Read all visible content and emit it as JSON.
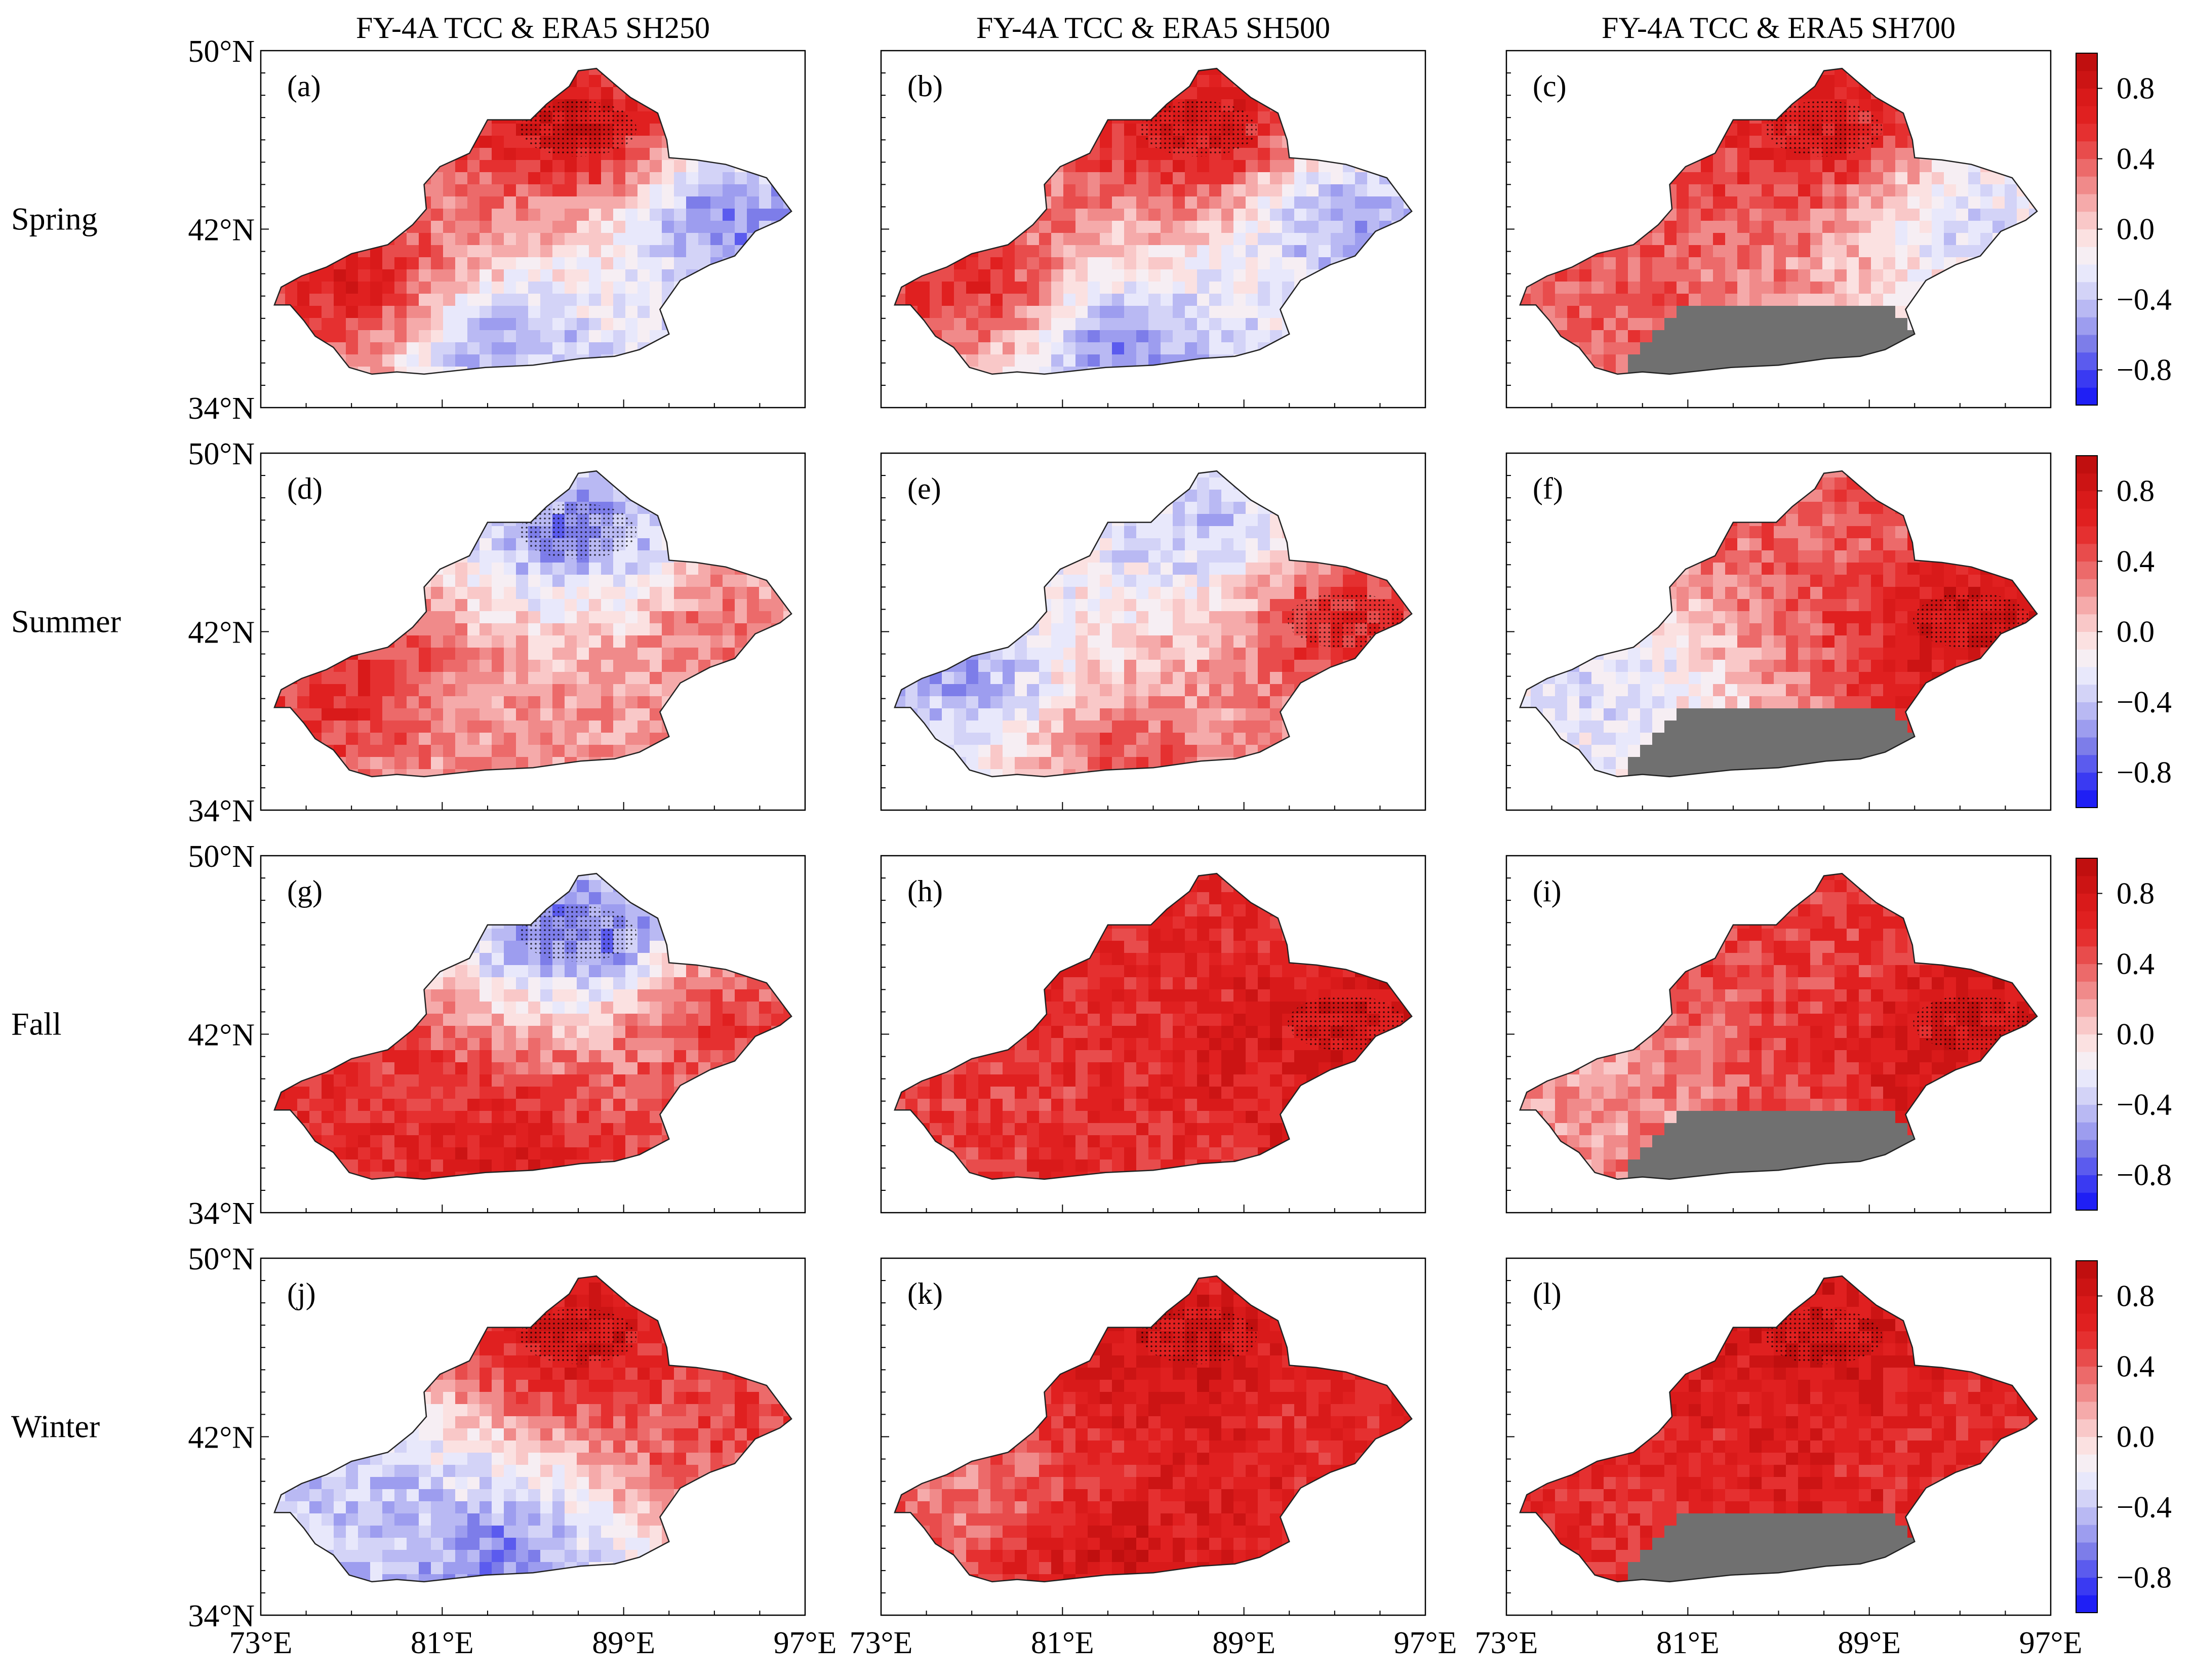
{
  "chart_data": {
    "type": "heatmap",
    "description_kind": "3x4 grid of correlation maps over Xinjiang",
    "column_titles": [
      "FY-4A TCC & ERA5 SH250",
      "FY-4A TCC & ERA5 SH500",
      "FY-4A TCC & ERA5 SH700"
    ],
    "row_labels": [
      "Spring",
      "Summer",
      "Fall",
      "Winter"
    ],
    "panel_labels": [
      "(a)",
      "(b)",
      "(c)",
      "(d)",
      "(e)",
      "(f)",
      "(g)",
      "(h)",
      "(i)",
      "(j)",
      "(k)",
      "(l)"
    ],
    "y_axis": {
      "range": [
        34,
        50
      ],
      "ticks": [
        50,
        42,
        34
      ],
      "tick_labels": [
        "50°N",
        "42°N",
        "34°N"
      ]
    },
    "x_axis": {
      "range": [
        73,
        97
      ],
      "ticks": [
        73,
        81,
        89,
        97
      ],
      "tick_labels": [
        "73°E",
        "81°E",
        "89°E",
        "97°E"
      ]
    },
    "colorbar": {
      "range": [
        -1.0,
        1.0
      ],
      "levels": [
        -1.0,
        -0.9,
        -0.8,
        -0.7,
        -0.6,
        -0.5,
        -0.4,
        -0.3,
        -0.2,
        -0.1,
        0.0,
        0.1,
        0.2,
        0.3,
        0.4,
        0.5,
        0.6,
        0.7,
        0.8,
        0.9,
        1.0
      ],
      "tick_values": [
        0.8,
        0.4,
        0.0,
        -0.4,
        -0.8
      ],
      "tick_labels": [
        "0.8",
        "0.4",
        "0.0",
        "−0.4",
        "−0.8"
      ],
      "colors": [
        "#1f1ff5",
        "#3a3af2",
        "#5b5bee",
        "#7d7de9",
        "#9d9def",
        "#b9b9f3",
        "#d3d3f7",
        "#e8e8fb",
        "#f6eef3",
        "#fbe1e1",
        "#f9c8c8",
        "#f5aaaa",
        "#f08a8a",
        "#ec6a6a",
        "#e84c4c",
        "#e53030",
        "#e02020",
        "#d91a1a",
        "#cc1414",
        "#c00f0f"
      ]
    },
    "masked_color": "#707070",
    "significance_marker": "stippling",
    "panels": [
      {
        "id": "a",
        "season": "Spring",
        "level": "SH250",
        "dominant_r": 0.6,
        "regions": {
          "north": 0.8,
          "east": -0.6,
          "south": -0.5,
          "west": 0.7
        }
      },
      {
        "id": "b",
        "season": "Spring",
        "level": "SH500",
        "dominant_r": 0.6,
        "regions": {
          "north": 0.8,
          "east": -0.5,
          "south": -0.6,
          "west": 0.6
        }
      },
      {
        "id": "c",
        "season": "Spring",
        "level": "SH700",
        "dominant_r": 0.4,
        "regions": {
          "north": 0.7,
          "east": -0.3,
          "south": "masked",
          "west": 0.4
        }
      },
      {
        "id": "d",
        "season": "Summer",
        "level": "SH250",
        "dominant_r": 0.3,
        "regions": {
          "north": -0.6,
          "east": 0.3,
          "south": 0.2,
          "west": 0.6
        }
      },
      {
        "id": "e",
        "season": "Summer",
        "level": "SH500",
        "dominant_r": 0.4,
        "regions": {
          "north": -0.4,
          "east": 0.6,
          "south": 0.4,
          "west": -0.5
        }
      },
      {
        "id": "f",
        "season": "Summer",
        "level": "SH700",
        "dominant_r": 0.6,
        "regions": {
          "north": 0.4,
          "east": 0.8,
          "south": "masked",
          "west": -0.3
        }
      },
      {
        "id": "g",
        "season": "Fall",
        "level": "SH250",
        "dominant_r": 0.5,
        "regions": {
          "north": -0.7,
          "east": 0.5,
          "south": 0.7,
          "west": 0.6
        }
      },
      {
        "id": "h",
        "season": "Fall",
        "level": "SH500",
        "dominant_r": 0.6,
        "regions": {
          "north": 0.6,
          "east": 0.8,
          "south": 0.6,
          "west": 0.5
        }
      },
      {
        "id": "i",
        "season": "Fall",
        "level": "SH700",
        "dominant_r": 0.5,
        "regions": {
          "north": 0.5,
          "east": 0.8,
          "south": "masked",
          "west": 0.2
        }
      },
      {
        "id": "j",
        "season": "Winter",
        "level": "SH250",
        "dominant_r": 0.2,
        "regions": {
          "north": 0.8,
          "east": 0.5,
          "south": -0.6,
          "west": -0.4
        }
      },
      {
        "id": "k",
        "season": "Winter",
        "level": "SH500",
        "dominant_r": 0.6,
        "regions": {
          "north": 0.8,
          "east": 0.6,
          "south": 0.8,
          "west": 0.3
        }
      },
      {
        "id": "l",
        "season": "Winter",
        "level": "SH700",
        "dominant_r": 0.6,
        "regions": {
          "north": 0.8,
          "east": 0.6,
          "south": "masked",
          "west": 0.6
        }
      }
    ]
  }
}
